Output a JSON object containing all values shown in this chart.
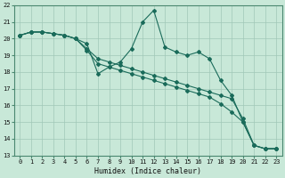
{
  "bg_color": "#c8e8d8",
  "line_color": "#1a6b5a",
  "xlabel": "Humidex (Indice chaleur)",
  "xlim": [
    -0.5,
    23.5
  ],
  "ylim": [
    13,
    22
  ],
  "yticks": [
    13,
    14,
    15,
    16,
    17,
    18,
    19,
    20,
    21,
    22
  ],
  "xticks": [
    0,
    1,
    2,
    3,
    4,
    5,
    6,
    7,
    8,
    9,
    10,
    11,
    12,
    13,
    14,
    15,
    16,
    17,
    18,
    19,
    20,
    21,
    22,
    23
  ],
  "line1_x": [
    0,
    1,
    2,
    3,
    4,
    5,
    6,
    7,
    8,
    9,
    10,
    11,
    12,
    13,
    14,
    15,
    16,
    17,
    18,
    19,
    20,
    21,
    22,
    23
  ],
  "line1_y": [
    20.2,
    20.4,
    20.4,
    20.3,
    20.2,
    20.0,
    19.7,
    17.9,
    18.3,
    18.6,
    19.4,
    21.0,
    21.7,
    19.5,
    19.2,
    19.0,
    19.2,
    18.8,
    17.5,
    16.6,
    15.0,
    13.6,
    13.4,
    13.4
  ],
  "line2_x": [
    0,
    1,
    2,
    3,
    4,
    5,
    6,
    7,
    8,
    9,
    10,
    11,
    12,
    13,
    14,
    15,
    16,
    17,
    18,
    19,
    20,
    21,
    22,
    23
  ],
  "line2_y": [
    20.2,
    20.4,
    20.4,
    20.3,
    20.2,
    20.0,
    19.4,
    18.8,
    18.6,
    18.4,
    18.2,
    18.0,
    17.8,
    17.6,
    17.4,
    17.2,
    17.0,
    16.8,
    16.6,
    16.4,
    15.2,
    13.6,
    13.4,
    13.4
  ],
  "line3_x": [
    0,
    1,
    2,
    3,
    4,
    5,
    6,
    7,
    8,
    9,
    10,
    11,
    12,
    13,
    14,
    15,
    16,
    17,
    18,
    19,
    20,
    21,
    22,
    23
  ],
  "line3_y": [
    20.2,
    20.4,
    20.4,
    20.3,
    20.2,
    20.0,
    19.3,
    18.5,
    18.3,
    18.1,
    17.9,
    17.7,
    17.5,
    17.3,
    17.1,
    16.9,
    16.7,
    16.5,
    16.1,
    15.6,
    15.0,
    13.6,
    13.4,
    13.4
  ],
  "marker_style": "D",
  "marker_size": 2,
  "line_width": 0.8,
  "tick_fontsize": 5,
  "xlabel_fontsize": 6,
  "grid_color": "#a0c8b8",
  "spine_color": "#4a8870"
}
